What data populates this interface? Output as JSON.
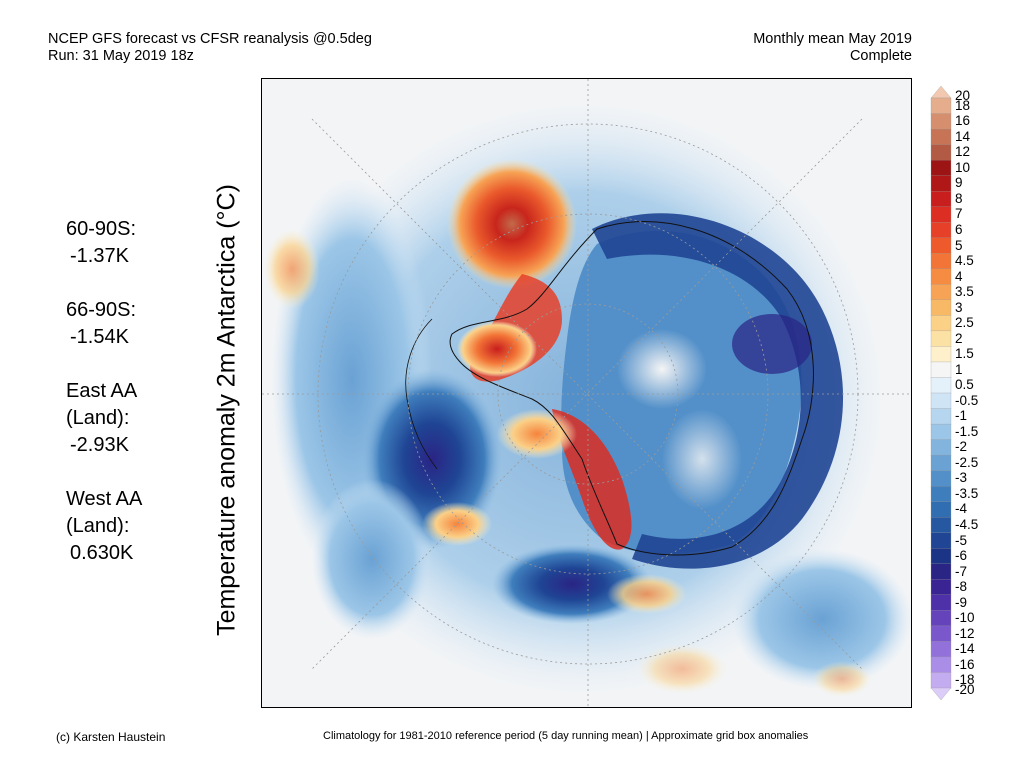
{
  "header": {
    "left_line1": "NCEP GFS forecast vs CFSR reanalysis @0.5deg",
    "left_line2": "Run: 31 May 2019 18z",
    "right_line1": "Monthly mean May 2019",
    "right_line2": "Complete"
  },
  "map": {
    "title": "Temperature anomaly 2m Antarctica (°C)",
    "projection": "south-polar-stereographic"
  },
  "stats": [
    {
      "label": "60-90S:",
      "value": "-1.37K"
    },
    {
      "label": "66-90S:",
      "value": "-1.54K"
    },
    {
      "label": "East AA\n(Land):",
      "value": "-2.93K"
    },
    {
      "label": "West AA\n(Land):",
      "value": "0.630K"
    }
  ],
  "colorbar": {
    "labels": [
      "20",
      "18",
      "16",
      "14",
      "12",
      "10",
      "9",
      "8",
      "7",
      "6",
      "5",
      "4.5",
      "4",
      "3.5",
      "3",
      "2.5",
      "2",
      "1.5",
      "1",
      "0.5",
      "-0.5",
      "-1",
      "-1.5",
      "-2",
      "-2.5",
      "-3",
      "-3.5",
      "-4",
      "-4.5",
      "-5",
      "-6",
      "-7",
      "-8",
      "-9",
      "-10",
      "-12",
      "-14",
      "-16",
      "-18",
      "-20"
    ],
    "colors": [
      "#f2c9b0",
      "#e6ad8c",
      "#d68f6e",
      "#c77355",
      "#b35a44",
      "#9c1414",
      "#b01818",
      "#c81e1e",
      "#dc2e22",
      "#e64028",
      "#ee5a2c",
      "#f27436",
      "#f58c42",
      "#f7a355",
      "#f8b967",
      "#fbd087",
      "#fce1a4",
      "#fdf0cb",
      "#f5f5f5",
      "#e4f0fa",
      "#cfe4f5",
      "#b6d6ef",
      "#9cc6e7",
      "#82b4de",
      "#6aa2d4",
      "#5390c9",
      "#3f7ebd",
      "#316db1",
      "#2658a2",
      "#1f4594",
      "#1b3486",
      "#2a2485",
      "#3a2494",
      "#4e30a8",
      "#6443bb",
      "#7a58cc",
      "#9272da",
      "#aa8de6",
      "#c4acf0",
      "#dcccf8"
    ]
  },
  "footer": {
    "left": "(c) Karsten Haustein",
    "right": "Climatology for 1981-2010 reference period (5 day running mean) | Approximate grid box anomalies"
  }
}
